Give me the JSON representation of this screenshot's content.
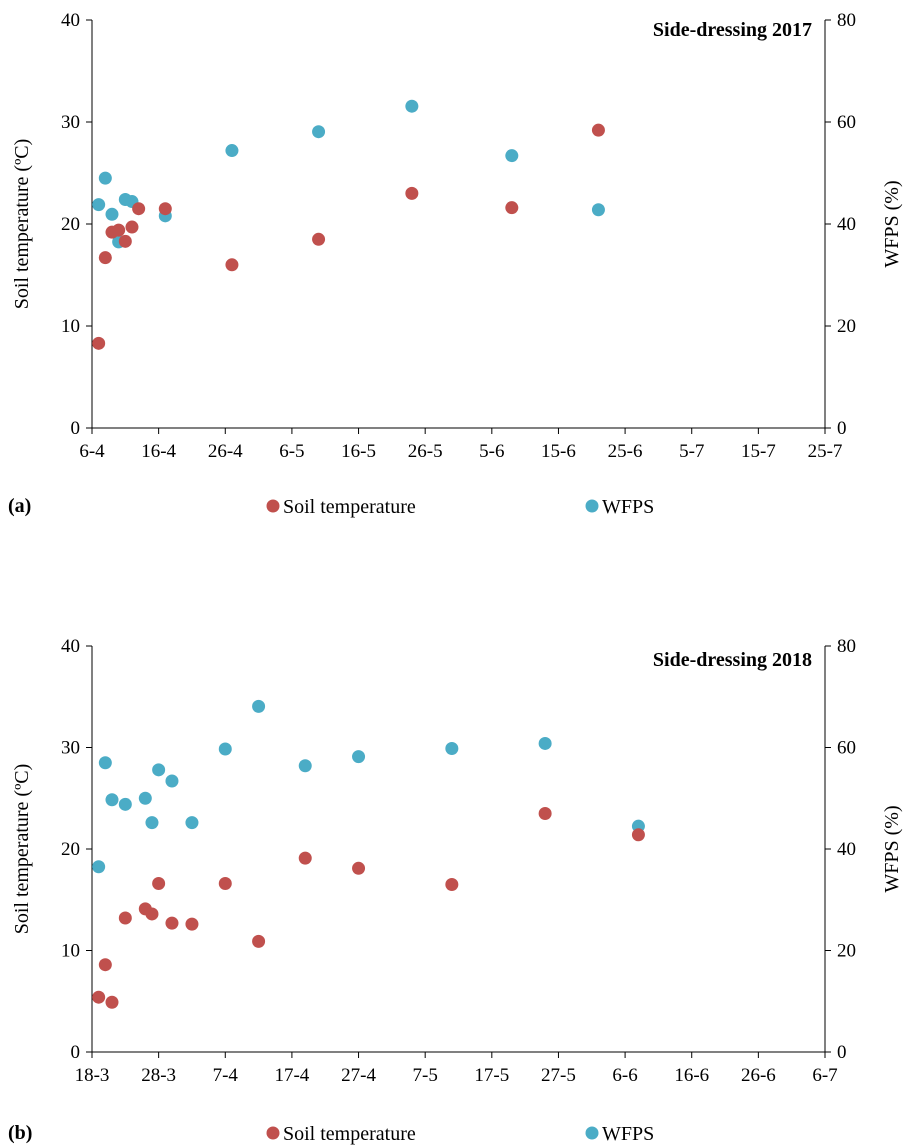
{
  "chart_data": [
    {
      "type": "scatter",
      "panel_label": "(a)",
      "title": "Side-dressing 2017",
      "ylabel": "Soil temperature (ºC)",
      "y2label": "WFPS (%)",
      "ylim": [
        0,
        40
      ],
      "y2lim": [
        0,
        80
      ],
      "yticks": [
        "0",
        "10",
        "20",
        "30",
        "40"
      ],
      "y2ticks": [
        "0",
        "20",
        "40",
        "60",
        "80"
      ],
      "xlim_days": [
        0,
        110
      ],
      "xtick_labels": [
        "6-4",
        "16-4",
        "26-4",
        "6-5",
        "16-5",
        "26-5",
        "5-6",
        "15-6",
        "25-6",
        "5-7",
        "15-7",
        "25-7"
      ],
      "legend_position": "bottom",
      "colors": {
        "soil": "#c0504d",
        "wfps": "#4bacc6"
      },
      "series": [
        {
          "name": "Soil temperature",
          "axis": "left",
          "x": [
            "7-4",
            "8-4",
            "9-4",
            "10-4",
            "11-4",
            "12-4",
            "13-4",
            "17-4",
            "27-4",
            "10-5",
            "24-5",
            "8-6",
            "21-6"
          ],
          "values": [
            8.3,
            16.7,
            19.2,
            19.4,
            18.3,
            19.7,
            21.5,
            21.5,
            16.0,
            18.5,
            23.0,
            21.6,
            29.2
          ]
        },
        {
          "name": "WFPS",
          "axis": "right",
          "x": [
            "7-4",
            "8-4",
            "9-4",
            "10-4",
            "11-4",
            "12-4",
            "17-4",
            "27-4",
            "10-5",
            "24-5",
            "8-6",
            "21-6"
          ],
          "values": [
            43.8,
            49.0,
            41.9,
            36.5,
            44.8,
            44.4,
            41.6,
            54.4,
            58.1,
            63.1,
            53.4,
            42.8
          ]
        }
      ]
    },
    {
      "type": "scatter",
      "panel_label": "(b)",
      "title": "Side-dressing 2018",
      "ylabel": "Soil temperature (ºC)",
      "y2label": "WFPS (%)",
      "ylim": [
        0,
        40
      ],
      "y2lim": [
        0,
        80
      ],
      "yticks": [
        "0",
        "10",
        "20",
        "30",
        "40"
      ],
      "y2ticks": [
        "0",
        "20",
        "40",
        "60",
        "80"
      ],
      "xlim_days": [
        0,
        110
      ],
      "xtick_labels": [
        "18-3",
        "28-3",
        "7-4",
        "17-4",
        "27-4",
        "7-5",
        "17-5",
        "27-5",
        "6-6",
        "16-6",
        "26-6",
        "6-7"
      ],
      "legend_position": "bottom",
      "colors": {
        "soil": "#c0504d",
        "wfps": "#4bacc6"
      },
      "series": [
        {
          "name": "Soil temperature",
          "axis": "left",
          "x": [
            "19-3",
            "20-3",
            "21-3",
            "23-3",
            "26-3",
            "27-3",
            "28-3",
            "30-3",
            "2-4",
            "7-4",
            "12-4",
            "19-4",
            "27-4",
            "11-5",
            "25-5",
            "8-6"
          ],
          "values": [
            5.4,
            8.6,
            4.9,
            13.2,
            14.1,
            13.6,
            16.6,
            12.7,
            12.6,
            16.6,
            10.9,
            19.1,
            18.1,
            16.5,
            23.5,
            21.4
          ]
        },
        {
          "name": "WFPS",
          "axis": "right",
          "x": [
            "19-3",
            "20-3",
            "21-3",
            "23-3",
            "26-3",
            "27-3",
            "28-3",
            "30-3",
            "2-4",
            "7-4",
            "12-4",
            "19-4",
            "27-4",
            "11-5",
            "25-5",
            "8-6"
          ],
          "values": [
            36.5,
            57.0,
            49.7,
            48.8,
            50.0,
            45.2,
            55.6,
            53.4,
            45.2,
            59.7,
            68.1,
            56.4,
            58.2,
            59.8,
            60.8,
            44.5
          ]
        }
      ]
    }
  ]
}
